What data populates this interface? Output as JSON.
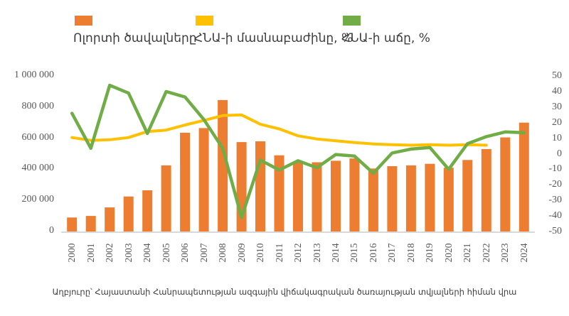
{
  "legend": {
    "position": "top",
    "items": [
      {
        "name": "sector-volumes",
        "label": "Ոլորտի ծավալները",
        "color": "#ED7D31",
        "marker": "square"
      },
      {
        "name": "gdp-share",
        "label": "ՀՆԱ-ի մասնաբաժինը, %",
        "color": "#FFC000",
        "marker": "square"
      },
      {
        "name": "gdp-growth",
        "label": "ՀՆԱ-ի աճը, %",
        "color": "#70AD47",
        "marker": "square"
      }
    ]
  },
  "caption": "Աղբյուրը՝ Հայաստանի Հանրապետության ազգային վիճակագրական ծառայության տվյալների հիման վրա",
  "chart_data": {
    "type": "combo",
    "background": "#ffffff",
    "grid": false,
    "baseline_color": "#D9D9D9",
    "tick_text_color": "#595959",
    "categories": [
      2000,
      2001,
      2002,
      2003,
      2004,
      2005,
      2006,
      2007,
      2008,
      2009,
      2010,
      2011,
      2012,
      2013,
      2014,
      2015,
      2016,
      2017,
      2018,
      2019,
      2020,
      2021,
      2022,
      2023,
      2024
    ],
    "series": [
      {
        "name": "Ոլորտի ծավալները",
        "type": "bar",
        "axis": "left",
        "color": "#ED7D31",
        "values": [
          90000,
          100000,
          155000,
          225000,
          265000,
          425000,
          635000,
          665000,
          845000,
          575000,
          580000,
          490000,
          450000,
          445000,
          455000,
          470000,
          405000,
          420000,
          425000,
          435000,
          410000,
          460000,
          530000,
          605000,
          700000
        ]
      },
      {
        "name": "ՀՆԱ-ի մասնաբաժինը, %",
        "type": "line",
        "axis": "right",
        "color": "#FFC000",
        "values": [
          10.4,
          8.6,
          9.0,
          10.4,
          14.3,
          15.2,
          18.5,
          21.4,
          24.5,
          25.0,
          19.0,
          16.0,
          11.5,
          9.5,
          8.3,
          7.2,
          6.3,
          5.8,
          5.5,
          5.8,
          5.5,
          5.8,
          5.5,
          null,
          null
        ]
      },
      {
        "name": "ՀՆԱ-ի աճը, %",
        "type": "line",
        "axis": "right",
        "color": "#70AD47",
        "values": [
          26,
          3.5,
          44,
          39,
          13,
          40,
          36.5,
          22,
          3.5,
          -41,
          -4,
          -10.5,
          -4.5,
          -9,
          -0.5,
          -1.5,
          -12.5,
          0.5,
          3,
          4,
          -10,
          6.5,
          11,
          14,
          13.5
        ]
      }
    ],
    "left_axis": {
      "min": 0,
      "max": 1000000,
      "tick_labels_bottom_to_top": [
        "0",
        "200 000",
        "400 000",
        "600 000",
        "800 000",
        "1 000 000"
      ]
    },
    "right_axis": {
      "min": -50,
      "max": 50,
      "tick_labels_bottom_to_top": [
        "-50",
        "-40",
        "-30",
        "-20",
        "-10",
        "0",
        "10",
        "20",
        "30",
        "40",
        "50"
      ]
    }
  }
}
